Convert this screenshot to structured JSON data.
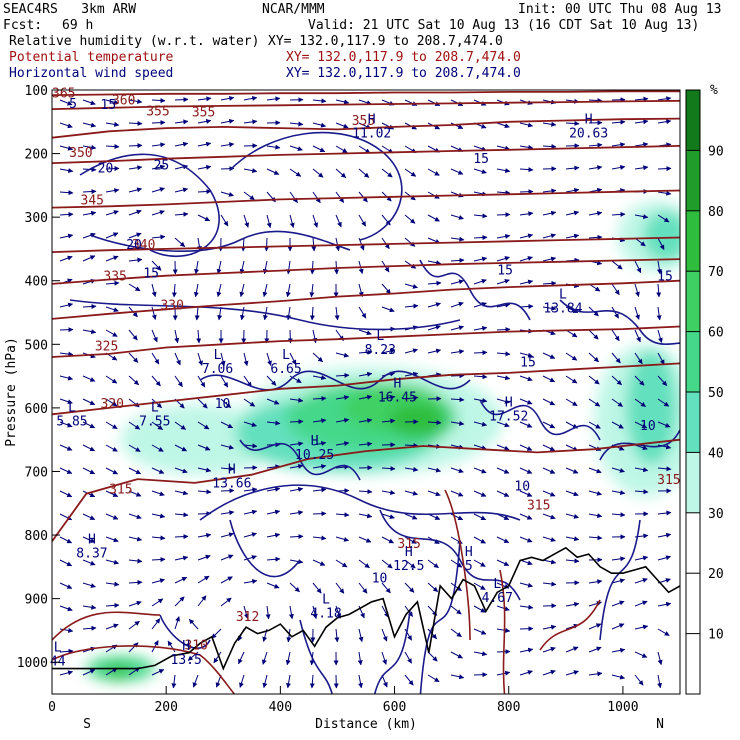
{
  "header": {
    "model": "SEAC4RS   3km ARW",
    "org": "NCAR/MMM",
    "init": "Init: 00 UTC Thu 08 Aug 13",
    "fcst_label": "Fcst:",
    "fcst_value": "69 h",
    "valid": "Valid: 21 UTC Sat 10 Aug 13 (16 CDT Sat 10 Aug 13)",
    "fields": [
      {
        "name": "Relative humidity (w.r.t. water)",
        "xy": "XY= 132.0,117.9 to 208.7,474.0",
        "color": "#000000"
      },
      {
        "name": "Potential temperature",
        "xy": "XY= 132.0,117.9 to 208.7,474.0",
        "color": "#a01010"
      },
      {
        "name": "Horizontal wind speed",
        "xy": "XY= 132.0,117.9 to 208.7,474.0",
        "color": "#00007a"
      }
    ]
  },
  "chart_data": {
    "type": "cross-section",
    "xlabel": "Distance (km)",
    "ylabel": "Pressure (hPa)",
    "x_ticks": [
      0,
      200,
      400,
      600,
      800,
      1000
    ],
    "xlim": [
      0,
      1100
    ],
    "y_ticks": [
      100,
      200,
      300,
      400,
      500,
      600,
      700,
      800,
      900,
      1000
    ],
    "ylim": [
      100,
      1050
    ],
    "left_end_label": "S",
    "right_end_label": "N",
    "colorbar": {
      "unit": "%",
      "ticks": [
        10,
        20,
        30,
        40,
        50,
        60,
        70,
        80,
        90
      ],
      "colors": {
        "30-40": "#bff7e6",
        "40-50": "#63e0bd",
        "50-60": "#45d88a",
        "60-70": "#3fd064",
        "70-80": "#2ebd3c",
        "80-90": "#1f9c2a",
        "90-100": "#137a1c"
      }
    },
    "theta_contours": [
      {
        "value": 315,
        "p": [
          810,
          735,
          712,
          718,
          705,
          680,
          668,
          660,
          665,
          670,
          665,
          650
        ],
        "x": [
          0,
          60,
          150,
          250,
          350,
          450,
          550,
          650,
          750,
          850,
          950,
          1100
        ]
      },
      {
        "value": 320,
        "p": [
          610,
          600,
          590,
          580,
          570,
          565,
          555,
          548,
          545,
          540,
          535,
          530
        ],
        "x": [
          0,
          100,
          200,
          300,
          400,
          500,
          600,
          700,
          800,
          900,
          1000,
          1100
        ]
      },
      {
        "value": 325,
        "p": [
          520,
          515,
          505,
          500,
          495,
          492,
          488,
          484,
          480,
          478,
          476,
          472
        ],
        "x": [
          0,
          100,
          200,
          300,
          400,
          500,
          600,
          700,
          800,
          900,
          1000,
          1100
        ]
      },
      {
        "value": 330,
        "p": [
          460,
          452,
          445,
          438,
          432,
          425,
          420,
          414,
          410,
          407,
          404,
          400
        ],
        "x": [
          0,
          100,
          200,
          300,
          400,
          500,
          600,
          700,
          800,
          900,
          1000,
          1100
        ]
      },
      {
        "value": 335,
        "p": [
          405,
          398,
          392,
          388,
          384,
          380,
          377,
          374,
          372,
          370,
          368,
          366
        ],
        "x": [
          0,
          100,
          200,
          300,
          400,
          500,
          600,
          700,
          800,
          900,
          1000,
          1100
        ]
      },
      {
        "value": 340,
        "p": [
          355,
          352,
          350,
          348,
          346,
          344,
          342,
          340,
          338,
          336,
          334,
          332
        ],
        "x": [
          0,
          100,
          200,
          300,
          400,
          500,
          600,
          700,
          800,
          900,
          1000,
          1100
        ]
      },
      {
        "value": 345,
        "p": [
          285,
          283,
          280,
          276,
          272,
          270,
          268,
          266,
          264,
          262,
          260,
          258
        ],
        "x": [
          0,
          100,
          200,
          300,
          400,
          500,
          600,
          700,
          800,
          900,
          1000,
          1100
        ]
      },
      {
        "value": 350,
        "p": [
          215,
          212,
          208,
          205,
          202,
          200,
          198,
          196,
          194,
          192,
          190,
          188
        ],
        "x": [
          0,
          100,
          200,
          300,
          400,
          500,
          600,
          700,
          800,
          900,
          1000,
          1100
        ]
      },
      {
        "value": 355,
        "p": [
          175,
          165,
          160,
          158,
          160,
          162,
          158,
          155,
          150,
          148,
          146,
          145
        ],
        "x": [
          0,
          100,
          200,
          300,
          400,
          500,
          600,
          700,
          800,
          900,
          1000,
          1100
        ]
      },
      {
        "value": 360,
        "p": [
          130,
          128,
          126,
          125,
          124,
          123,
          122,
          121,
          120,
          119,
          118,
          117
        ],
        "x": [
          0,
          100,
          200,
          300,
          400,
          500,
          600,
          700,
          800,
          900,
          1000,
          1100
        ]
      },
      {
        "value": 365,
        "p": [
          108,
          107,
          106,
          106,
          105,
          105,
          104,
          104,
          103,
          103,
          102,
          102
        ],
        "x": [
          0,
          100,
          200,
          300,
          400,
          500,
          600,
          700,
          800,
          900,
          1000,
          1100
        ]
      }
    ],
    "theta_labels": [
      {
        "text": "365",
        "x": 0,
        "p": 112
      },
      {
        "text": "360",
        "x": 105,
        "p": 123
      },
      {
        "text": "355",
        "x": 165,
        "p": 140
      },
      {
        "text": "355",
        "x": 245,
        "p": 142
      },
      {
        "text": "355",
        "x": 525,
        "p": 155
      },
      {
        "text": "350",
        "x": 30,
        "p": 205
      },
      {
        "text": "345",
        "x": 50,
        "p": 280
      },
      {
        "text": "340",
        "x": 140,
        "p": 350
      },
      {
        "text": "335",
        "x": 90,
        "p": 400
      },
      {
        "text": "330",
        "x": 190,
        "p": 445
      },
      {
        "text": "325",
        "x": 75,
        "p": 510
      },
      {
        "text": "320",
        "x": 85,
        "p": 600
      },
      {
        "text": "315",
        "x": 100,
        "p": 735
      },
      {
        "text": "315",
        "x": 605,
        "p": 820
      },
      {
        "text": "315",
        "x": 832,
        "p": 760
      },
      {
        "text": "315",
        "x": 1060,
        "p": 720
      },
      {
        "text": "310",
        "x": 232,
        "p": 980
      },
      {
        "text": "312",
        "x": 322,
        "p": 935
      }
    ],
    "speed_labels": [
      {
        "text": "5",
        "x": 30,
        "p": 128
      },
      {
        "text": "15",
        "x": 85,
        "p": 130
      },
      {
        "text": "20",
        "x": 80,
        "p": 230
      },
      {
        "text": "25",
        "x": 178,
        "p": 225
      },
      {
        "text": "20",
        "x": 130,
        "p": 350
      },
      {
        "text": "15",
        "x": 160,
        "p": 395
      },
      {
        "text": "15",
        "x": 780,
        "p": 390
      },
      {
        "text": "15",
        "x": 820,
        "p": 535
      },
      {
        "text": "10",
        "x": 285,
        "p": 600
      },
      {
        "text": "10",
        "x": 1030,
        "p": 635
      },
      {
        "text": "10",
        "x": 810,
        "p": 730
      },
      {
        "text": "10",
        "x": 560,
        "p": 875
      },
      {
        "text": "15",
        "x": 738,
        "p": 215
      },
      {
        "text": "15",
        "x": 1060,
        "p": 400
      }
    ],
    "extrema": [
      {
        "kind": "H",
        "value": "11.02",
        "x": 560,
        "p": 175
      },
      {
        "kind": "H",
        "value": "20.63",
        "x": 940,
        "p": 175
      },
      {
        "kind": "L",
        "value": "13.84",
        "x": 895,
        "p": 450
      },
      {
        "kind": "L",
        "value": "8.23",
        "x": 575,
        "p": 515
      },
      {
        "kind": "L",
        "value": "7.06",
        "x": 290,
        "p": 545
      },
      {
        "kind": "L",
        "value": "6.65",
        "x": 410,
        "p": 545
      },
      {
        "kind": "L",
        "value": "5.85",
        "x": 35,
        "p": 628
      },
      {
        "kind": "L",
        "value": "7.55",
        "x": 180,
        "p": 628
      },
      {
        "kind": "H",
        "value": "16.45",
        "x": 605,
        "p": 590
      },
      {
        "kind": "H",
        "value": "17.52",
        "x": 800,
        "p": 620
      },
      {
        "kind": "H",
        "value": "10.25",
        "x": 460,
        "p": 680
      },
      {
        "kind": "H",
        "value": "13.66",
        "x": 315,
        "p": 725
      },
      {
        "kind": "H",
        "value": "8.37",
        "x": 70,
        "p": 835
      },
      {
        "kind": "H",
        "value": "12.5",
        "x": 625,
        "p": 855
      },
      {
        "kind": "L",
        "value": "4.18",
        "x": 480,
        "p": 930
      },
      {
        "kind": "L",
        "value": "4.67",
        "x": 780,
        "p": 905
      },
      {
        "kind": "L",
        "value": "44",
        "x": 10,
        "p": 1005
      },
      {
        "kind": "H",
        "value": "13.5",
        "x": 235,
        "p": 1003
      },
      {
        "kind": "H",
        "value": "5",
        "x": 730,
        "p": 855
      }
    ],
    "terrain": {
      "x": [
        0,
        40,
        80,
        120,
        150,
        180,
        210,
        240,
        260,
        280,
        300,
        320,
        340,
        360,
        380,
        400,
        420,
        440,
        460,
        480,
        500,
        520,
        540,
        560,
        580,
        600,
        620,
        640,
        660,
        680,
        700,
        720,
        740,
        760,
        780,
        800,
        820,
        840,
        860,
        880,
        900,
        920,
        940,
        960,
        980,
        1000,
        1020,
        1040,
        1060,
        1080,
        1100
      ],
      "p": [
        1010,
        1010,
        1010,
        1010,
        1010,
        1005,
        990,
        985,
        970,
        960,
        1010,
        970,
        945,
        955,
        950,
        940,
        960,
        950,
        975,
        945,
        930,
        925,
        915,
        905,
        900,
        960,
        925,
        905,
        985,
        880,
        900,
        870,
        880,
        920,
        890,
        880,
        840,
        835,
        840,
        830,
        820,
        835,
        830,
        850,
        860,
        860,
        855,
        850,
        870,
        890,
        880
      ]
    }
  }
}
